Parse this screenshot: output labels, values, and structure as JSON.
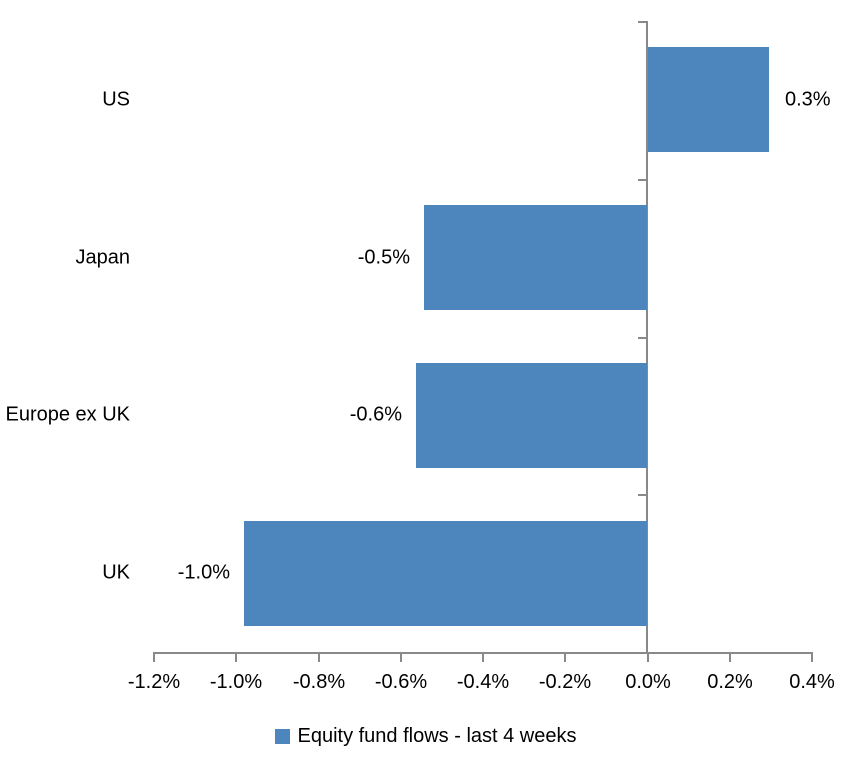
{
  "chart_data": {
    "type": "bar",
    "orientation": "horizontal",
    "categories": [
      "US",
      "Japan",
      "Europe ex UK",
      "UK"
    ],
    "values": [
      0.3,
      -0.5,
      -0.6,
      -1.0
    ],
    "values_precise": [
      0.295,
      -0.543,
      -0.561,
      -0.98
    ],
    "value_labels": [
      "0.3%",
      "-0.5%",
      "-0.6%",
      "-1.0%"
    ],
    "series": [
      {
        "name": "Equity fund flows - last 4 weeks",
        "values": [
          0.3,
          -0.5,
          -0.6,
          -1.0
        ]
      }
    ],
    "xlim": [
      -1.2,
      0.4
    ],
    "x_ticks": [
      -1.2,
      -1.0,
      -0.8,
      -0.6,
      -0.4,
      -0.2,
      0.0,
      0.2,
      0.4
    ],
    "x_tick_labels": [
      "-1.2%",
      "-1.0%",
      "-0.8%",
      "-0.6%",
      "-0.4%",
      "-0.2%",
      "0.0%",
      "0.2%",
      "0.4%"
    ],
    "title": "",
    "xlabel": "",
    "ylabel": "",
    "grid": "off",
    "legend_position": "bottom"
  },
  "legend": {
    "label": "Equity fund flows - last 4 weeks"
  },
  "colors": {
    "bar": "#4D86BD",
    "axis": "#898989",
    "text": "#000000",
    "background": "#FFFFFF"
  }
}
